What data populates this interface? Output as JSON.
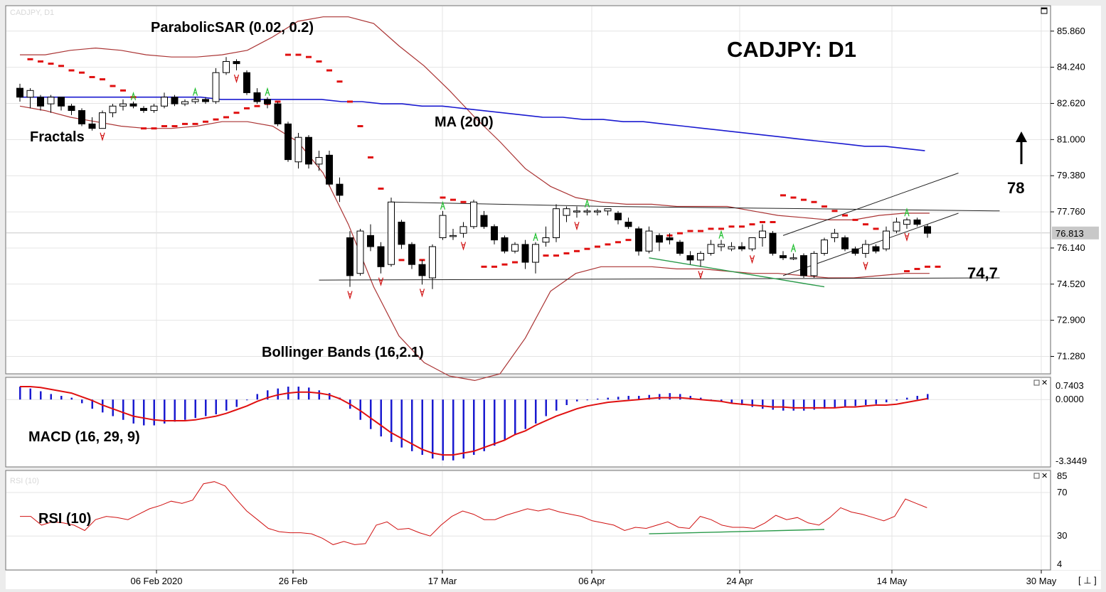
{
  "chart_data": {
    "type": "candlestick",
    "title": "CADJPY: D1",
    "symbol_ghost": "CADJPY, D1",
    "rsi_ghost": "RSI (10)",
    "price_axis": {
      "ticks": [
        "85.860",
        "84.240",
        "82.620",
        "81.000",
        "79.380",
        "77.760",
        "76.140",
        "74.520",
        "72.900",
        "71.280"
      ],
      "ylim": [
        70.5,
        87.0
      ],
      "current_price": "76.813"
    },
    "x_ticks": [
      "06 Feb 2020",
      "26 Feb",
      "17 Mar",
      "06 Apr",
      "24 Apr",
      "14 May",
      "30 May"
    ],
    "indicator_labels": {
      "parabolic_sar": "ParabolicSAR (0.02, 0.2)",
      "fractals": "Fractals",
      "ma": "MA (200)",
      "bollinger": "Bollinger Bands (16,2.1)",
      "macd": "MACD (16, 29, 9)",
      "rsi": "RSI (10)"
    },
    "levels": {
      "resistance_label": "78",
      "support_label": "74,7",
      "resistance": 77.8,
      "support": 74.7
    },
    "macd_axis": {
      "ticks": [
        "0.7403",
        "0.0000",
        "-3.3449"
      ],
      "ylim": [
        -3.3449,
        0.7403
      ]
    },
    "rsi_axis": {
      "ticks": [
        "85",
        "70",
        "30",
        "4"
      ],
      "ylim": [
        4,
        85
      ]
    },
    "candles": [
      [
        83.3,
        83.5,
        82.7,
        82.9
      ],
      [
        82.9,
        83.3,
        82.4,
        83.2
      ],
      [
        82.9,
        83.0,
        82.3,
        82.5
      ],
      [
        82.6,
        83.0,
        82.2,
        82.9
      ],
      [
        82.9,
        82.9,
        82.3,
        82.5
      ],
      [
        82.5,
        82.6,
        82.1,
        82.3
      ],
      [
        82.3,
        82.4,
        81.6,
        81.7
      ],
      [
        81.7,
        82.0,
        81.4,
        81.5
      ],
      [
        81.5,
        82.3,
        81.5,
        82.2
      ],
      [
        82.2,
        82.6,
        82.0,
        82.5
      ],
      [
        82.5,
        82.8,
        82.3,
        82.6
      ],
      [
        82.6,
        82.7,
        82.4,
        82.5
      ],
      [
        82.4,
        82.5,
        82.2,
        82.3
      ],
      [
        82.3,
        82.6,
        82.2,
        82.5
      ],
      [
        82.5,
        83.1,
        82.4,
        82.9
      ],
      [
        82.9,
        83.0,
        82.5,
        82.6
      ],
      [
        82.6,
        82.8,
        82.5,
        82.7
      ],
      [
        82.7,
        82.9,
        82.6,
        82.8
      ],
      [
        82.8,
        82.9,
        82.6,
        82.7
      ],
      [
        82.7,
        84.2,
        82.6,
        84.0
      ],
      [
        84.0,
        84.7,
        83.9,
        84.5
      ],
      [
        84.5,
        84.6,
        84.1,
        84.4
      ],
      [
        84.0,
        84.1,
        83.0,
        83.1
      ],
      [
        83.1,
        83.3,
        82.6,
        82.7
      ],
      [
        82.8,
        82.9,
        82.4,
        82.6
      ],
      [
        82.6,
        82.7,
        81.6,
        81.7
      ],
      [
        81.7,
        81.8,
        80.0,
        80.1
      ],
      [
        80.0,
        81.3,
        79.7,
        81.1
      ],
      [
        81.1,
        81.2,
        79.7,
        79.9
      ],
      [
        79.9,
        80.5,
        79.6,
        80.2
      ],
      [
        80.3,
        80.5,
        78.9,
        79.0
      ],
      [
        79.0,
        79.3,
        78.2,
        78.5
      ],
      [
        76.6,
        76.9,
        74.4,
        74.9
      ],
      [
        75.0,
        77.0,
        74.9,
        76.9
      ],
      [
        76.7,
        77.2,
        76.0,
        76.2
      ],
      [
        76.2,
        76.4,
        75.0,
        75.3
      ],
      [
        75.4,
        78.4,
        75.3,
        78.2
      ],
      [
        77.3,
        77.4,
        76.1,
        76.3
      ],
      [
        76.3,
        76.4,
        75.2,
        75.4
      ],
      [
        75.4,
        75.6,
        74.5,
        74.9
      ],
      [
        74.8,
        76.3,
        74.3,
        76.2
      ],
      [
        76.6,
        77.8,
        76.5,
        77.6
      ],
      [
        76.7,
        77.0,
        76.5,
        76.7
      ],
      [
        76.8,
        77.3,
        76.6,
        77.1
      ],
      [
        77.1,
        78.3,
        77.0,
        78.2
      ],
      [
        77.6,
        77.8,
        77.0,
        77.1
      ],
      [
        77.1,
        77.2,
        76.3,
        76.5
      ],
      [
        76.6,
        76.7,
        75.9,
        76.0
      ],
      [
        76.0,
        76.4,
        75.9,
        76.3
      ],
      [
        76.3,
        76.5,
        75.2,
        75.5
      ],
      [
        75.5,
        76.4,
        75.0,
        76.3
      ],
      [
        76.4,
        77.1,
        76.2,
        76.6
      ],
      [
        76.6,
        78.1,
        76.4,
        77.9
      ],
      [
        77.6,
        78.0,
        77.3,
        77.9
      ],
      [
        77.8,
        78.0,
        77.5,
        77.8
      ],
      [
        77.8,
        77.9,
        77.6,
        77.8
      ],
      [
        77.8,
        77.9,
        77.6,
        77.8
      ],
      [
        77.8,
        77.9,
        77.6,
        77.9
      ],
      [
        77.7,
        77.8,
        77.2,
        77.4
      ],
      [
        77.3,
        77.5,
        77.0,
        77.1
      ],
      [
        77.0,
        77.1,
        75.8,
        76.0
      ],
      [
        76.0,
        77.1,
        75.9,
        76.9
      ],
      [
        76.7,
        76.8,
        76.0,
        76.4
      ],
      [
        76.6,
        76.8,
        76.3,
        76.5
      ],
      [
        76.4,
        76.5,
        75.8,
        75.9
      ],
      [
        75.8,
        76.0,
        75.4,
        75.6
      ],
      [
        75.6,
        76.0,
        75.3,
        75.9
      ],
      [
        75.9,
        76.5,
        75.8,
        76.3
      ],
      [
        76.2,
        76.5,
        76.0,
        76.3
      ],
      [
        76.1,
        76.4,
        76.0,
        76.2
      ],
      [
        76.2,
        76.4,
        76.0,
        76.1
      ],
      [
        76.1,
        76.6,
        76.0,
        76.6
      ],
      [
        76.6,
        77.2,
        76.2,
        76.9
      ],
      [
        76.8,
        76.9,
        75.8,
        75.9
      ],
      [
        75.8,
        76.0,
        75.6,
        75.7
      ],
      [
        75.7,
        75.9,
        75.6,
        75.7
      ],
      [
        75.8,
        75.9,
        74.8,
        74.9
      ],
      [
        74.9,
        76.0,
        74.8,
        75.9
      ],
      [
        75.9,
        76.6,
        75.8,
        76.5
      ],
      [
        76.6,
        77.0,
        76.4,
        76.8
      ],
      [
        76.6,
        76.7,
        76.0,
        76.1
      ],
      [
        76.1,
        76.2,
        75.8,
        75.9
      ],
      [
        75.9,
        76.5,
        75.7,
        76.3
      ],
      [
        76.2,
        76.3,
        75.9,
        76.0
      ],
      [
        76.1,
        77.1,
        76.0,
        76.9
      ],
      [
        76.9,
        77.5,
        76.8,
        77.3
      ],
      [
        77.2,
        77.5,
        77.0,
        77.4
      ],
      [
        77.4,
        77.5,
        77.1,
        77.2
      ],
      [
        77.1,
        77.2,
        76.6,
        76.8
      ]
    ],
    "ma200": [
      82.9,
      82.9,
      82.9,
      82.9,
      82.9,
      82.9,
      82.9,
      82.9,
      82.9,
      82.9,
      82.8,
      82.8,
      82.8,
      82.8,
      82.8,
      82.8,
      82.7,
      82.7,
      82.6,
      82.6,
      82.5,
      82.5,
      82.4,
      82.3,
      82.2,
      82.1,
      82.0,
      82.0,
      81.9,
      81.9,
      81.8,
      81.8,
      81.7,
      81.6,
      81.5,
      81.4,
      81.3,
      81.2,
      81.1,
      81.0,
      80.9,
      80.8,
      80.7,
      80.7,
      80.6,
      80.5
    ],
    "bb_upper": [
      84.8,
      84.8,
      85.0,
      85.1,
      85.0,
      84.8,
      84.7,
      84.7,
      84.8,
      85.0,
      85.6,
      86.3,
      86.5,
      86.5,
      86.2,
      85.2,
      84.3,
      83.2,
      82.0,
      80.9,
      79.7,
      78.9,
      78.4,
      78.2,
      78.1,
      78.1,
      78.0,
      78.0,
      78.0,
      77.8,
      77.6,
      77.5,
      77.4,
      77.4,
      77.6,
      77.7,
      77.7
    ],
    "bb_lower": [
      82.5,
      82.3,
      82.0,
      81.8,
      81.6,
      81.5,
      81.5,
      81.6,
      81.8,
      81.8,
      81.6,
      80.9,
      79.5,
      77.2,
      74.4,
      72.2,
      71.0,
      70.4,
      70.2,
      70.5,
      72.1,
      74.2,
      75.0,
      75.3,
      75.3,
      75.3,
      75.2,
      75.2,
      75.1,
      75.0,
      75.0,
      74.9,
      74.8,
      74.8,
      74.9,
      75.0,
      75.0
    ],
    "psar": [
      [
        1,
        84.6
      ],
      [
        2,
        84.5
      ],
      [
        3,
        84.4
      ],
      [
        4,
        84.3
      ],
      [
        5,
        84.1
      ],
      [
        6,
        84.0
      ],
      [
        7,
        83.8
      ],
      [
        8,
        83.7
      ],
      [
        9,
        83.4
      ],
      [
        10,
        83.2
      ],
      [
        11,
        82.9
      ],
      [
        12,
        81.5
      ],
      [
        13,
        81.5
      ],
      [
        14,
        81.6
      ],
      [
        15,
        81.6
      ],
      [
        16,
        81.7
      ],
      [
        17,
        81.7
      ],
      [
        18,
        81.8
      ],
      [
        19,
        81.9
      ],
      [
        20,
        82.0
      ],
      [
        21,
        82.2
      ],
      [
        22,
        82.4
      ],
      [
        23,
        82.5
      ],
      [
        24,
        82.6
      ],
      [
        25,
        82.7
      ],
      [
        26,
        84.8
      ],
      [
        27,
        84.8
      ],
      [
        28,
        84.7
      ],
      [
        29,
        84.5
      ],
      [
        30,
        84.1
      ],
      [
        31,
        83.6
      ],
      [
        32,
        82.7
      ],
      [
        33,
        81.6
      ],
      [
        34,
        80.2
      ],
      [
        35,
        78.8
      ],
      [
        36,
        78.0
      ],
      [
        37,
        75.6
      ],
      [
        38,
        75.6
      ],
      [
        39,
        75.6
      ],
      [
        40,
        75.7
      ],
      [
        41,
        78.4
      ],
      [
        42,
        78.3
      ],
      [
        43,
        78.2
      ],
      [
        44,
        78.1
      ],
      [
        45,
        75.3
      ],
      [
        46,
        75.3
      ],
      [
        47,
        75.4
      ],
      [
        48,
        75.5
      ],
      [
        49,
        75.6
      ],
      [
        50,
        75.7
      ],
      [
        51,
        75.8
      ],
      [
        52,
        75.8
      ],
      [
        53,
        75.9
      ],
      [
        54,
        76.0
      ],
      [
        55,
        76.1
      ],
      [
        56,
        76.2
      ],
      [
        57,
        76.3
      ],
      [
        58,
        76.4
      ],
      [
        59,
        76.5
      ],
      [
        60,
        76.5
      ],
      [
        61,
        76.6
      ],
      [
        62,
        76.6
      ],
      [
        63,
        76.7
      ],
      [
        64,
        76.8
      ],
      [
        65,
        76.9
      ],
      [
        66,
        76.9
      ],
      [
        67,
        77.0
      ],
      [
        68,
        77.0
      ],
      [
        69,
        77.1
      ],
      [
        70,
        77.1
      ],
      [
        71,
        77.2
      ],
      [
        72,
        77.3
      ],
      [
        73,
        77.3
      ],
      [
        74,
        78.5
      ],
      [
        75,
        78.4
      ],
      [
        76,
        78.3
      ],
      [
        77,
        78.2
      ],
      [
        78,
        78.0
      ],
      [
        79,
        77.8
      ],
      [
        80,
        77.6
      ],
      [
        81,
        77.4
      ],
      [
        82,
        77.2
      ],
      [
        83,
        77.0
      ],
      [
        86,
        75.1
      ],
      [
        87,
        75.2
      ],
      [
        88,
        75.3
      ],
      [
        89,
        75.3
      ]
    ],
    "fractals_up": [
      11,
      17,
      24,
      41,
      50,
      55,
      68,
      75,
      86
    ],
    "fractals_down": [
      8,
      21,
      32,
      35,
      39,
      43,
      54,
      66,
      71,
      82,
      86
    ],
    "macd_hist": [
      0.7,
      0.6,
      0.45,
      0.3,
      0.2,
      0.1,
      -0.2,
      -0.5,
      -0.7,
      -0.9,
      -1.1,
      -1.3,
      -1.4,
      -1.4,
      -1.3,
      -1.2,
      -1.1,
      -1.0,
      -0.9,
      -0.8,
      -0.6,
      -0.4,
      0.0,
      0.3,
      0.5,
      0.6,
      0.7,
      0.7,
      0.65,
      0.5,
      0.35,
      0.1,
      -0.5,
      -1.1,
      -1.6,
      -2.0,
      -2.3,
      -2.6,
      -2.8,
      -3.0,
      -3.2,
      -3.3,
      -3.3,
      -3.2,
      -3.0,
      -2.8,
      -2.5,
      -2.2,
      -1.9,
      -1.6,
      -1.3,
      -0.9,
      -0.6,
      -0.3,
      -0.1,
      0.0,
      0.05,
      0.1,
      0.15,
      0.2,
      0.2,
      0.25,
      0.3,
      0.35,
      0.3,
      0.2,
      0.1,
      0.0,
      -0.1,
      -0.2,
      -0.3,
      -0.4,
      -0.5,
      -0.55,
      -0.6,
      -0.6,
      -0.6,
      -0.55,
      -0.5,
      -0.45,
      -0.4,
      -0.35,
      -0.3,
      -0.25,
      -0.15,
      -0.05,
      0.1,
      0.2,
      0.3
    ],
    "macd_signal": [
      0.7,
      0.7,
      0.65,
      0.55,
      0.45,
      0.35,
      0.15,
      -0.05,
      -0.3,
      -0.5,
      -0.7,
      -0.9,
      -1.0,
      -1.1,
      -1.15,
      -1.15,
      -1.15,
      -1.1,
      -1.0,
      -0.9,
      -0.75,
      -0.55,
      -0.35,
      -0.1,
      0.1,
      0.25,
      0.35,
      0.4,
      0.4,
      0.35,
      0.25,
      0.05,
      -0.25,
      -0.6,
      -1.0,
      -1.4,
      -1.8,
      -2.1,
      -2.4,
      -2.7,
      -2.9,
      -3.0,
      -3.0,
      -2.9,
      -2.8,
      -2.6,
      -2.4,
      -2.2,
      -1.9,
      -1.7,
      -1.4,
      -1.15,
      -0.9,
      -0.7,
      -0.5,
      -0.35,
      -0.25,
      -0.15,
      -0.1,
      -0.05,
      0.0,
      0.05,
      0.1,
      0.1,
      0.1,
      0.05,
      0.0,
      -0.05,
      -0.1,
      -0.2,
      -0.25,
      -0.3,
      -0.35,
      -0.4,
      -0.4,
      -0.45,
      -0.45,
      -0.45,
      -0.45,
      -0.45,
      -0.4,
      -0.4,
      -0.35,
      -0.3,
      -0.3,
      -0.25,
      -0.15,
      -0.05,
      0.05
    ],
    "rsi": [
      48,
      48,
      40,
      43,
      42,
      40,
      35,
      45,
      48,
      47,
      45,
      50,
      55,
      58,
      62,
      60,
      63,
      78,
      80,
      76,
      64,
      53,
      45,
      37,
      34,
      33,
      33,
      32,
      28,
      22,
      25,
      22,
      23,
      40,
      43,
      36,
      37,
      33,
      30,
      40,
      48,
      53,
      50,
      45,
      45,
      49,
      52,
      55,
      53,
      55,
      52,
      50,
      48,
      44,
      42,
      40,
      35,
      38,
      37,
      40,
      43,
      38,
      37,
      48,
      45,
      40,
      38,
      38,
      37,
      42,
      49,
      45,
      47,
      42,
      40,
      47,
      56,
      52,
      50,
      47,
      44,
      48,
      64,
      60,
      56
    ],
    "trendlines": {
      "channel_top": [
        [
          36,
          78.2
        ],
        [
          57,
          78.0
        ],
        [
          95,
          77.8
        ]
      ],
      "support": [
        [
          29,
          74.7
        ],
        [
          95,
          74.8
        ]
      ],
      "rising_channel_upper": [
        [
          74,
          76.7
        ],
        [
          91,
          79.5
        ]
      ],
      "rising_channel_lower": [
        [
          74,
          74.9
        ],
        [
          91,
          77.7
        ]
      ],
      "falling_green": [
        [
          61,
          75.7
        ],
        [
          78,
          74.4
        ]
      ],
      "rsi_green": [
        [
          61,
          32
        ],
        [
          78,
          36
        ]
      ]
    }
  }
}
